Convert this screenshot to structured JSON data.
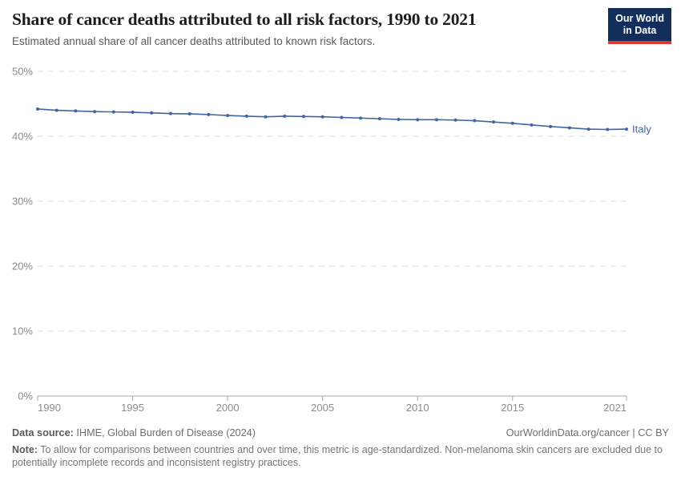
{
  "header": {
    "title": "Share of cancer deaths attributed to all risk factors, 1990 to 2021",
    "subtitle": "Estimated annual share of all cancer deaths attributed to known risk factors.",
    "logo": {
      "line1": "Our World",
      "line2": "in Data",
      "bg_color": "#122e5a",
      "accent_color": "#dc3a30"
    }
  },
  "chart_data": {
    "type": "line",
    "title": "Share of cancer deaths attributed to all risk factors, 1990 to 2021",
    "xlabel": "",
    "ylabel": "",
    "xlim": [
      1990,
      2021
    ],
    "ylim": [
      0,
      50
    ],
    "x_ticks": [
      1990,
      1995,
      2000,
      2005,
      2010,
      2015,
      2021
    ],
    "y_ticks": [
      0,
      10,
      20,
      30,
      40,
      50
    ],
    "y_tick_suffix": "%",
    "grid": "horizontal-dashed",
    "legend_position": "end-of-line-label",
    "series": [
      {
        "name": "Italy",
        "color": "#4065a0",
        "x": [
          1990,
          1991,
          1992,
          1993,
          1994,
          1995,
          1996,
          1997,
          1998,
          1999,
          2000,
          2001,
          2002,
          2003,
          2004,
          2005,
          2006,
          2007,
          2008,
          2009,
          2010,
          2011,
          2012,
          2013,
          2014,
          2015,
          2016,
          2017,
          2018,
          2019,
          2020,
          2021
        ],
        "values": [
          44.2,
          44.0,
          43.9,
          43.8,
          43.75,
          43.7,
          43.6,
          43.5,
          43.45,
          43.35,
          43.2,
          43.1,
          43.0,
          43.1,
          43.05,
          43.0,
          42.9,
          42.8,
          42.7,
          42.6,
          42.55,
          42.55,
          42.5,
          42.4,
          42.2,
          42.0,
          41.75,
          41.5,
          41.3,
          41.1,
          41.05,
          41.1
        ]
      }
    ]
  },
  "footer": {
    "datasource_label": "Data source:",
    "datasource_value": " IHME, Global Burden of Disease (2024)",
    "license": "OurWorldinData.org/cancer | CC BY",
    "note_label": "Note:",
    "note_value": " To allow for comparisons between countries and over time, this metric is age-standardized. Non-melanoma skin cancers are excluded due to potentially incomplete records and inconsistent registry practices."
  }
}
